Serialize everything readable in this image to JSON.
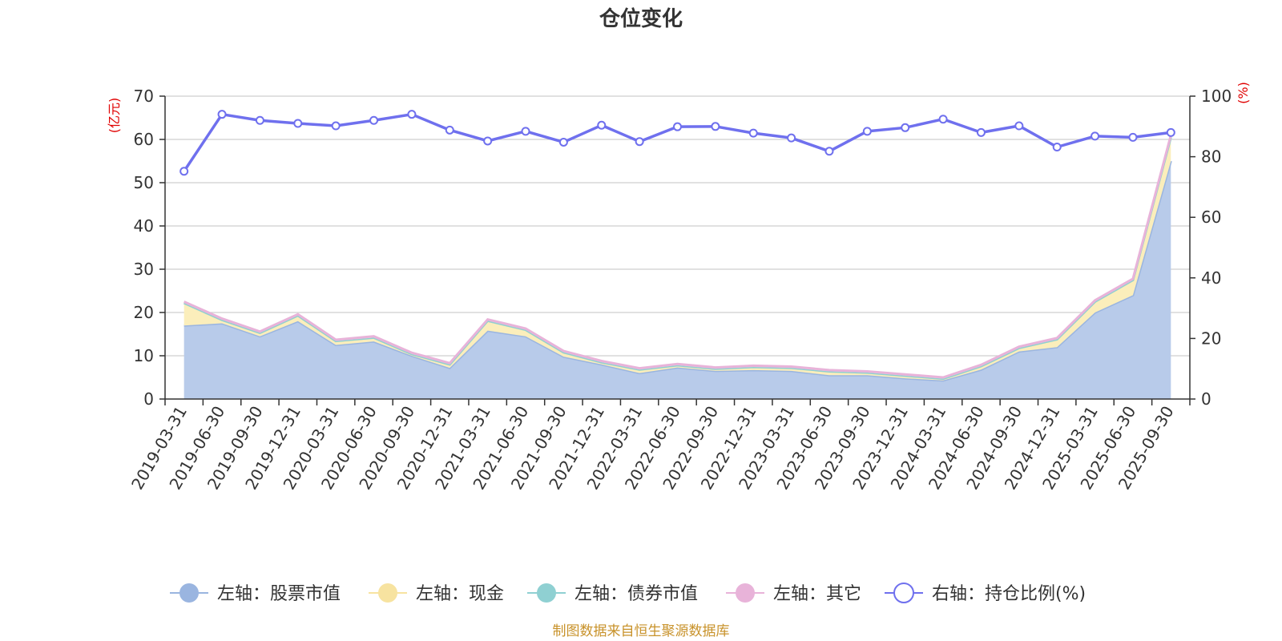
{
  "chart_data": {
    "type": "area",
    "title": "仓位变化",
    "categories": [
      "2019-03-31",
      "2019-06-30",
      "2019-09-30",
      "2019-12-31",
      "2020-03-31",
      "2020-06-30",
      "2020-09-30",
      "2020-12-31",
      "2021-03-31",
      "2021-06-30",
      "2021-09-30",
      "2021-12-31",
      "2022-03-31",
      "2022-06-30",
      "2022-09-30",
      "2022-12-31",
      "2023-03-31",
      "2023-06-30",
      "2023-09-30",
      "2023-12-31",
      "2024-03-31",
      "2024-06-30",
      "2024-09-30",
      "2024-12-31",
      "2025-03-31",
      "2025-06-30",
      "2025-09-30"
    ],
    "left_axis": {
      "unit_label": "(亿元)",
      "ylim": [
        0,
        70
      ],
      "ticks": [
        "0",
        "10",
        "20",
        "30",
        "40",
        "50",
        "60",
        "70"
      ]
    },
    "right_axis": {
      "unit_label": "(%)",
      "ylim": [
        0,
        100
      ],
      "ticks": [
        "0",
        "20",
        "40",
        "60",
        "80",
        "100"
      ]
    },
    "series": [
      {
        "name": "左轴：股票市值",
        "axis": "left",
        "color": "#9ab5e0",
        "fill": "#b8cbea",
        "values": [
          17.0,
          17.5,
          14.5,
          18.0,
          12.5,
          13.3,
          10.0,
          7.2,
          15.8,
          14.5,
          9.8,
          8.0,
          6.0,
          7.3,
          6.5,
          6.7,
          6.5,
          5.5,
          5.5,
          4.8,
          4.3,
          6.8,
          11.0,
          12.0,
          20.0,
          24.0,
          55.0
        ]
      },
      {
        "name": "左轴：现金",
        "axis": "left",
        "color": "#f7e3a0",
        "fill": "#fbeebb",
        "values": [
          5.2,
          0.8,
          0.8,
          1.3,
          0.9,
          0.9,
          0.4,
          0.8,
          2.3,
          1.5,
          1.0,
          0.5,
          0.8,
          0.5,
          0.5,
          0.7,
          0.7,
          0.9,
          0.6,
          0.6,
          0.4,
          0.8,
          0.8,
          1.8,
          2.5,
          3.5,
          5.5
        ]
      },
      {
        "name": "左轴：债券市值",
        "axis": "left",
        "color": "#8fd0d2",
        "fill": "#a9dddf",
        "values": [
          0,
          0,
          0,
          0,
          0,
          0,
          0,
          0,
          0,
          0,
          0,
          0,
          0,
          0,
          0,
          0,
          0,
          0,
          0,
          0,
          0,
          0,
          0,
          0,
          0,
          0,
          0
        ]
      },
      {
        "name": "左轴：其它",
        "axis": "left",
        "color": "#e8b3d9",
        "fill": "#f2cde8",
        "values": [
          0.3,
          0.3,
          0.3,
          0.3,
          0.3,
          0.3,
          0.3,
          0.3,
          0.3,
          0.3,
          0.3,
          0.3,
          0.3,
          0.3,
          0.3,
          0.3,
          0.3,
          0.3,
          0.3,
          0.3,
          0.3,
          0.3,
          0.3,
          0.3,
          0.3,
          0.3,
          0.5
        ]
      },
      {
        "name": "右轴：持仓比例(%)",
        "axis": "right",
        "color": "#6f70ee",
        "values": [
          75.2,
          94.0,
          92.0,
          91.0,
          90.2,
          92.0,
          94.0,
          88.8,
          85.2,
          88.4,
          84.8,
          90.4,
          85.0,
          89.9,
          90.0,
          87.8,
          86.2,
          81.8,
          88.4,
          89.6,
          92.4,
          88.0,
          90.2,
          83.2,
          86.8,
          86.4,
          88.0
        ]
      }
    ],
    "legend_position": "bottom",
    "grid": true
  },
  "source_note": "制图数据来自恒生聚源数据库"
}
